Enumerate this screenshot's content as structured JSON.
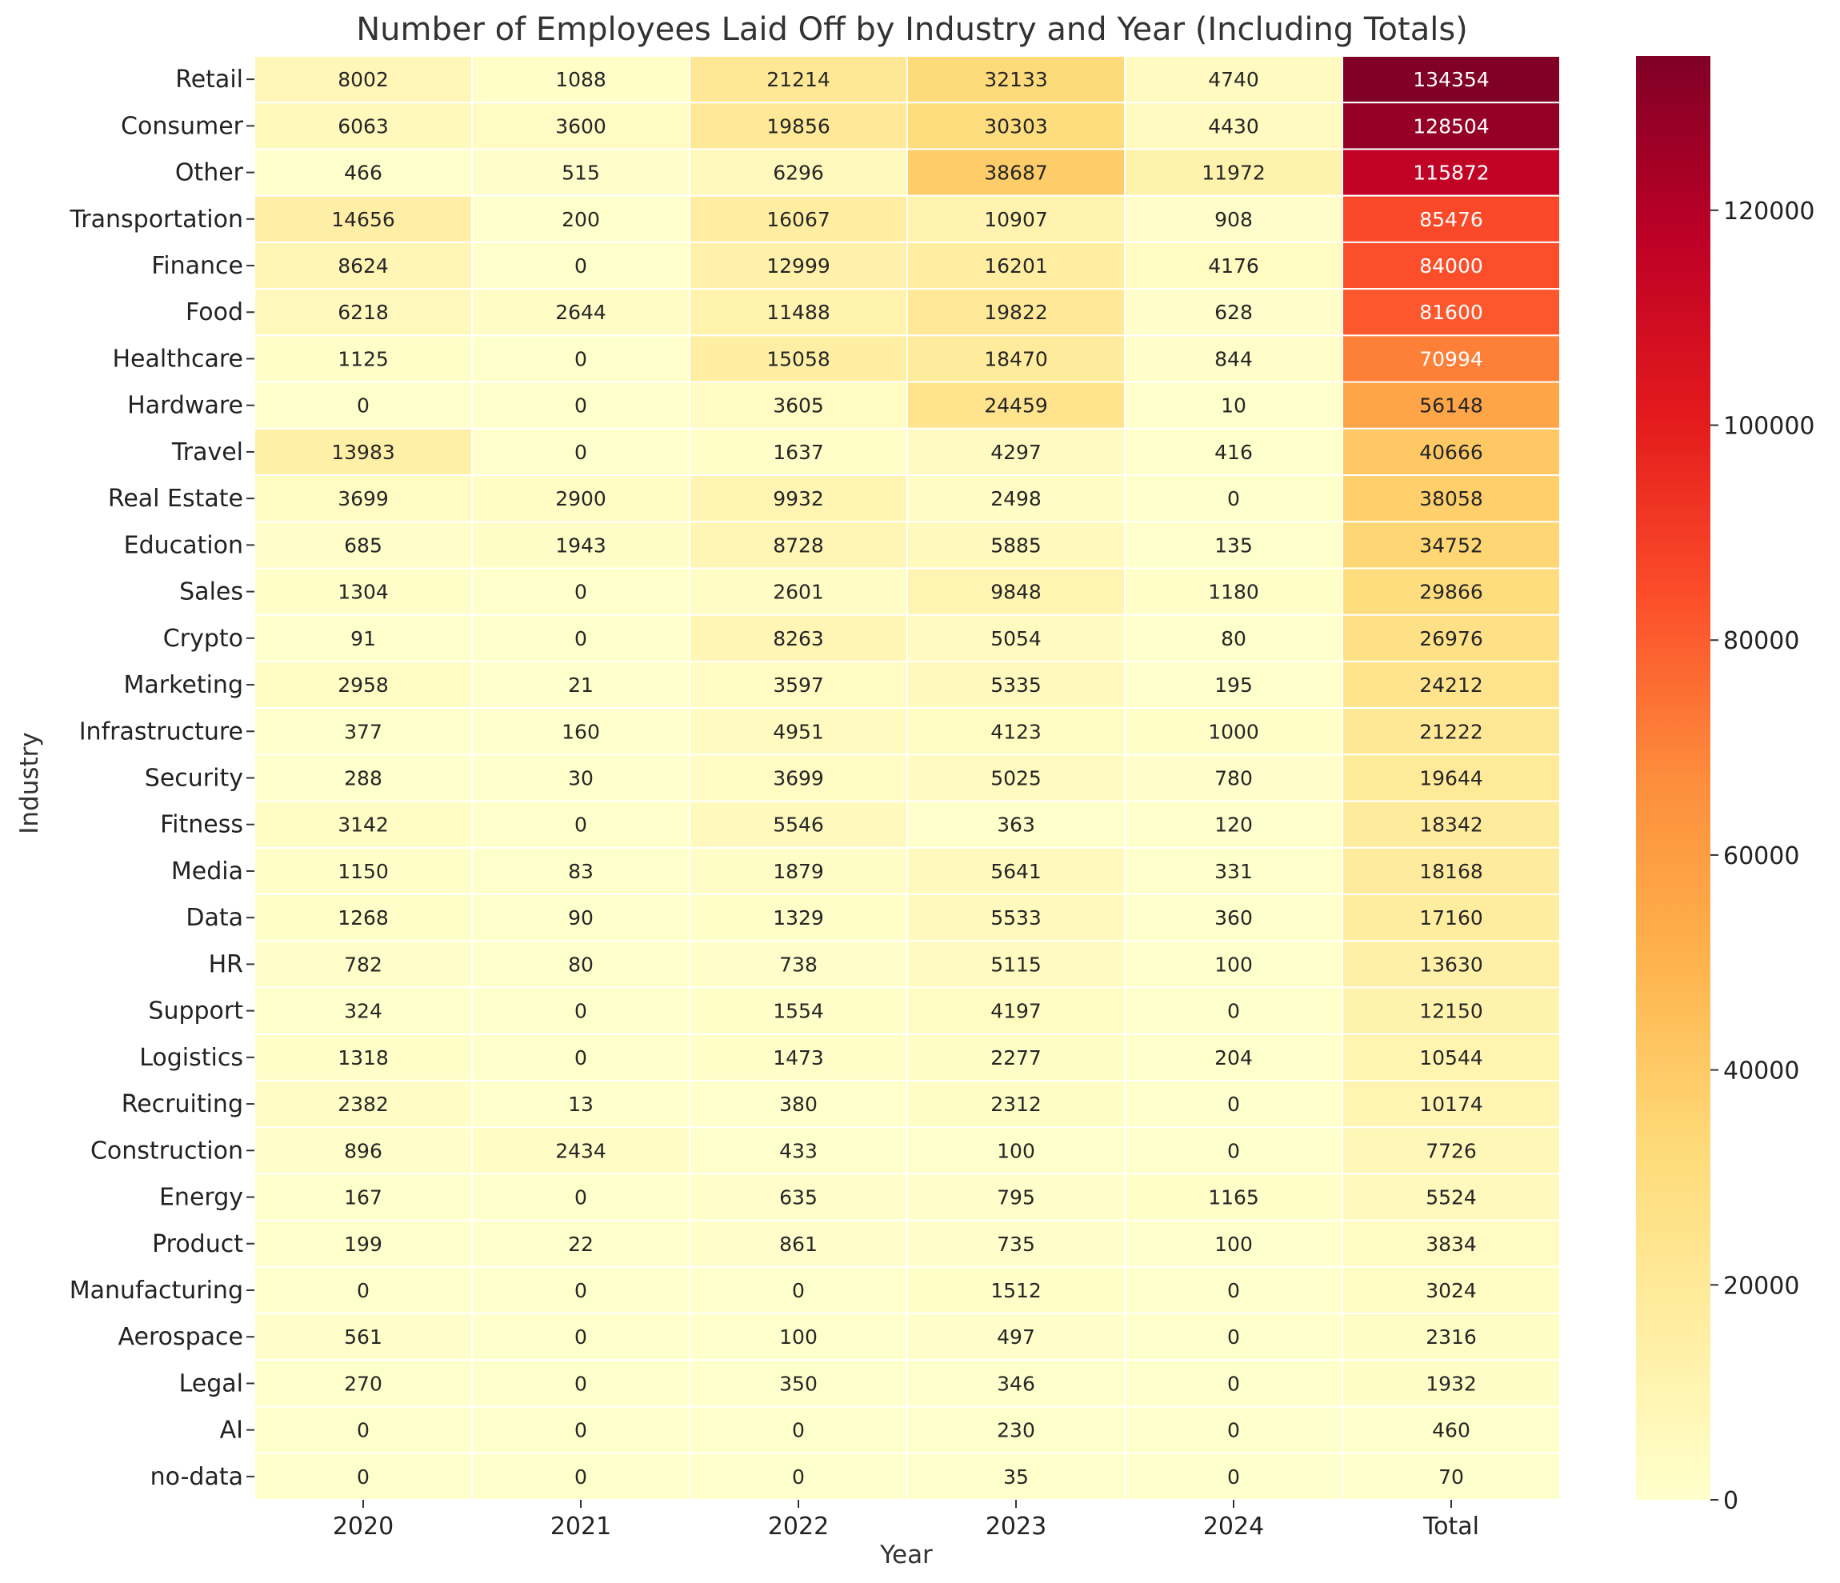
{
  "chart_data": {
    "type": "heatmap",
    "title": "Number of Employees Laid Off by Industry and Year (Including Totals)",
    "xlabel": "Year",
    "ylabel": "Industry",
    "columns": [
      "2020",
      "2021",
      "2022",
      "2023",
      "2024",
      "Total"
    ],
    "rows": [
      "Retail",
      "Consumer",
      "Other",
      "Transportation",
      "Finance",
      "Food",
      "Healthcare",
      "Hardware",
      "Travel",
      "Real Estate",
      "Education",
      "Sales",
      "Crypto",
      "Marketing",
      "Infrastructure",
      "Security",
      "Fitness",
      "Media",
      "Data",
      "HR",
      "Support",
      "Logistics",
      "Recruiting",
      "Construction",
      "Energy",
      "Product",
      "Manufacturing",
      "Aerospace",
      "Legal",
      "AI",
      "no-data"
    ],
    "values": [
      [
        8002,
        1088,
        21214,
        32133,
        4740,
        134354
      ],
      [
        6063,
        3600,
        19856,
        30303,
        4430,
        128504
      ],
      [
        466,
        515,
        6296,
        38687,
        11972,
        115872
      ],
      [
        14656,
        200,
        16067,
        10907,
        908,
        85476
      ],
      [
        8624,
        0,
        12999,
        16201,
        4176,
        84000
      ],
      [
        6218,
        2644,
        11488,
        19822,
        628,
        81600
      ],
      [
        1125,
        0,
        15058,
        18470,
        844,
        70994
      ],
      [
        0,
        0,
        3605,
        24459,
        10,
        56148
      ],
      [
        13983,
        0,
        1637,
        4297,
        416,
        40666
      ],
      [
        3699,
        2900,
        9932,
        2498,
        0,
        38058
      ],
      [
        685,
        1943,
        8728,
        5885,
        135,
        34752
      ],
      [
        1304,
        0,
        2601,
        9848,
        1180,
        29866
      ],
      [
        91,
        0,
        8263,
        5054,
        80,
        26976
      ],
      [
        2958,
        21,
        3597,
        5335,
        195,
        24212
      ],
      [
        377,
        160,
        4951,
        4123,
        1000,
        21222
      ],
      [
        288,
        30,
        3699,
        5025,
        780,
        19644
      ],
      [
        3142,
        0,
        5546,
        363,
        120,
        18342
      ],
      [
        1150,
        83,
        1879,
        5641,
        331,
        18168
      ],
      [
        1268,
        90,
        1329,
        5533,
        360,
        17160
      ],
      [
        782,
        80,
        738,
        5115,
        100,
        13630
      ],
      [
        324,
        0,
        1554,
        4197,
        0,
        12150
      ],
      [
        1318,
        0,
        1473,
        2277,
        204,
        10544
      ],
      [
        2382,
        13,
        380,
        2312,
        0,
        10174
      ],
      [
        896,
        2434,
        433,
        100,
        0,
        7726
      ],
      [
        167,
        0,
        635,
        795,
        1165,
        5524
      ],
      [
        199,
        22,
        861,
        735,
        100,
        3834
      ],
      [
        0,
        0,
        0,
        1512,
        0,
        3024
      ],
      [
        561,
        0,
        100,
        497,
        0,
        2316
      ],
      [
        270,
        0,
        350,
        346,
        0,
        1932
      ],
      [
        0,
        0,
        0,
        230,
        0,
        460
      ],
      [
        0,
        0,
        0,
        35,
        0,
        70
      ]
    ],
    "colorbar": {
      "colormap": "YlOrRd",
      "range": [
        0,
        134354
      ],
      "ticks": [
        0,
        20000,
        40000,
        60000,
        80000,
        100000,
        120000
      ]
    },
    "colormap_stops": [
      "#ffffcc",
      "#ffeda0",
      "#fed976",
      "#feb24c",
      "#fd8d3c",
      "#fc4e2a",
      "#e31a1c",
      "#bd0026",
      "#800026"
    ]
  }
}
